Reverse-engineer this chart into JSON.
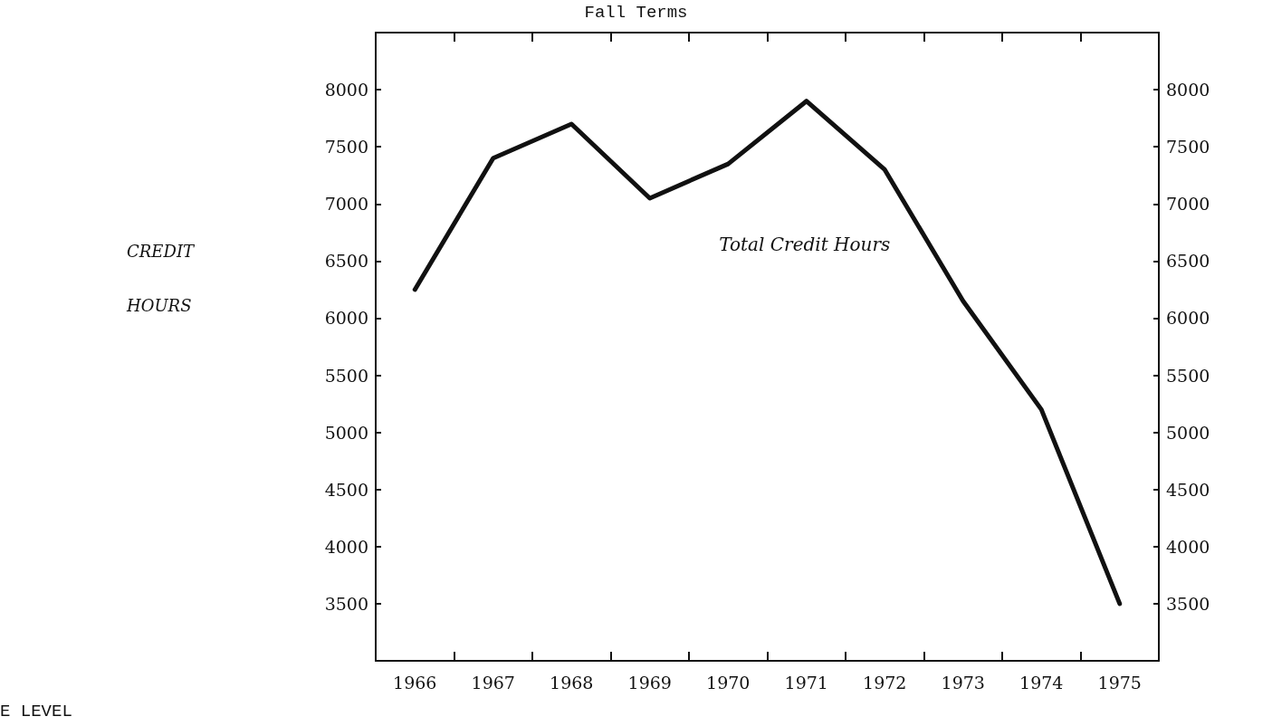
{
  "chart_data": {
    "type": "line",
    "title": "Fall Terms",
    "ylabel": "CREDIT\n\nHOURS",
    "categories": [
      "1966",
      "1967",
      "1968",
      "1969",
      "1970",
      "1971",
      "1972",
      "1973",
      "1974",
      "1975"
    ],
    "series": [
      {
        "name": "Total Credit Hours",
        "color": "#111111",
        "values": [
          6250,
          7400,
          7700,
          7050,
          7350,
          7900,
          7300,
          6150,
          5200,
          3500
        ]
      }
    ],
    "ylim": [
      3000,
      8500
    ],
    "yticks": [
      3500,
      4000,
      4500,
      5000,
      5500,
      6000,
      6500,
      7000,
      7500,
      8000
    ],
    "y2lim": [
      3000,
      8500
    ],
    "y2ticks": [
      3500,
      4000,
      4500,
      5000,
      5500,
      6000,
      6500,
      7000,
      7500,
      8000
    ],
    "annotations": [
      "E LEVEL"
    ],
    "grid": false,
    "legend": false,
    "marker": "none",
    "line_style": "solid"
  }
}
